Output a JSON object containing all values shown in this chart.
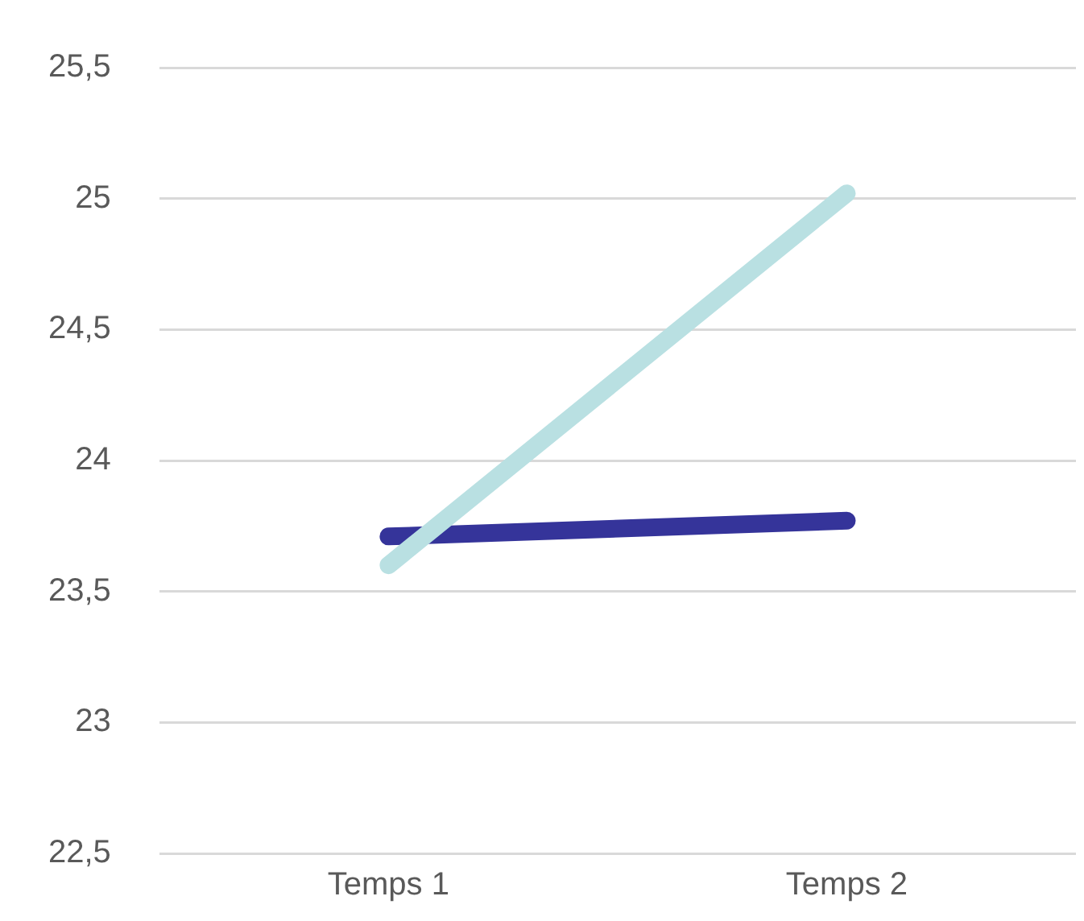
{
  "chart_data": {
    "type": "line",
    "categories": [
      "Temps 1",
      "Temps 2"
    ],
    "series": [
      {
        "color": "#b9e0e2",
        "values": [
          23.6,
          25.02
        ]
      },
      {
        "color": "#35349a",
        "values": [
          23.71,
          23.77
        ]
      }
    ],
    "ylim": [
      22.5,
      25.5
    ],
    "yticks": [
      {
        "value": 22.5,
        "label": "22,5"
      },
      {
        "value": 23,
        "label": "23"
      },
      {
        "value": 23.5,
        "label": "23,5"
      },
      {
        "value": 24,
        "label": "24"
      },
      {
        "value": 24.5,
        "label": "24,5"
      },
      {
        "value": 25,
        "label": "25"
      },
      {
        "value": 25.5,
        "label": "25,5"
      }
    ],
    "grid": "y",
    "legend": false,
    "marker": "none",
    "line_style": "solid"
  }
}
